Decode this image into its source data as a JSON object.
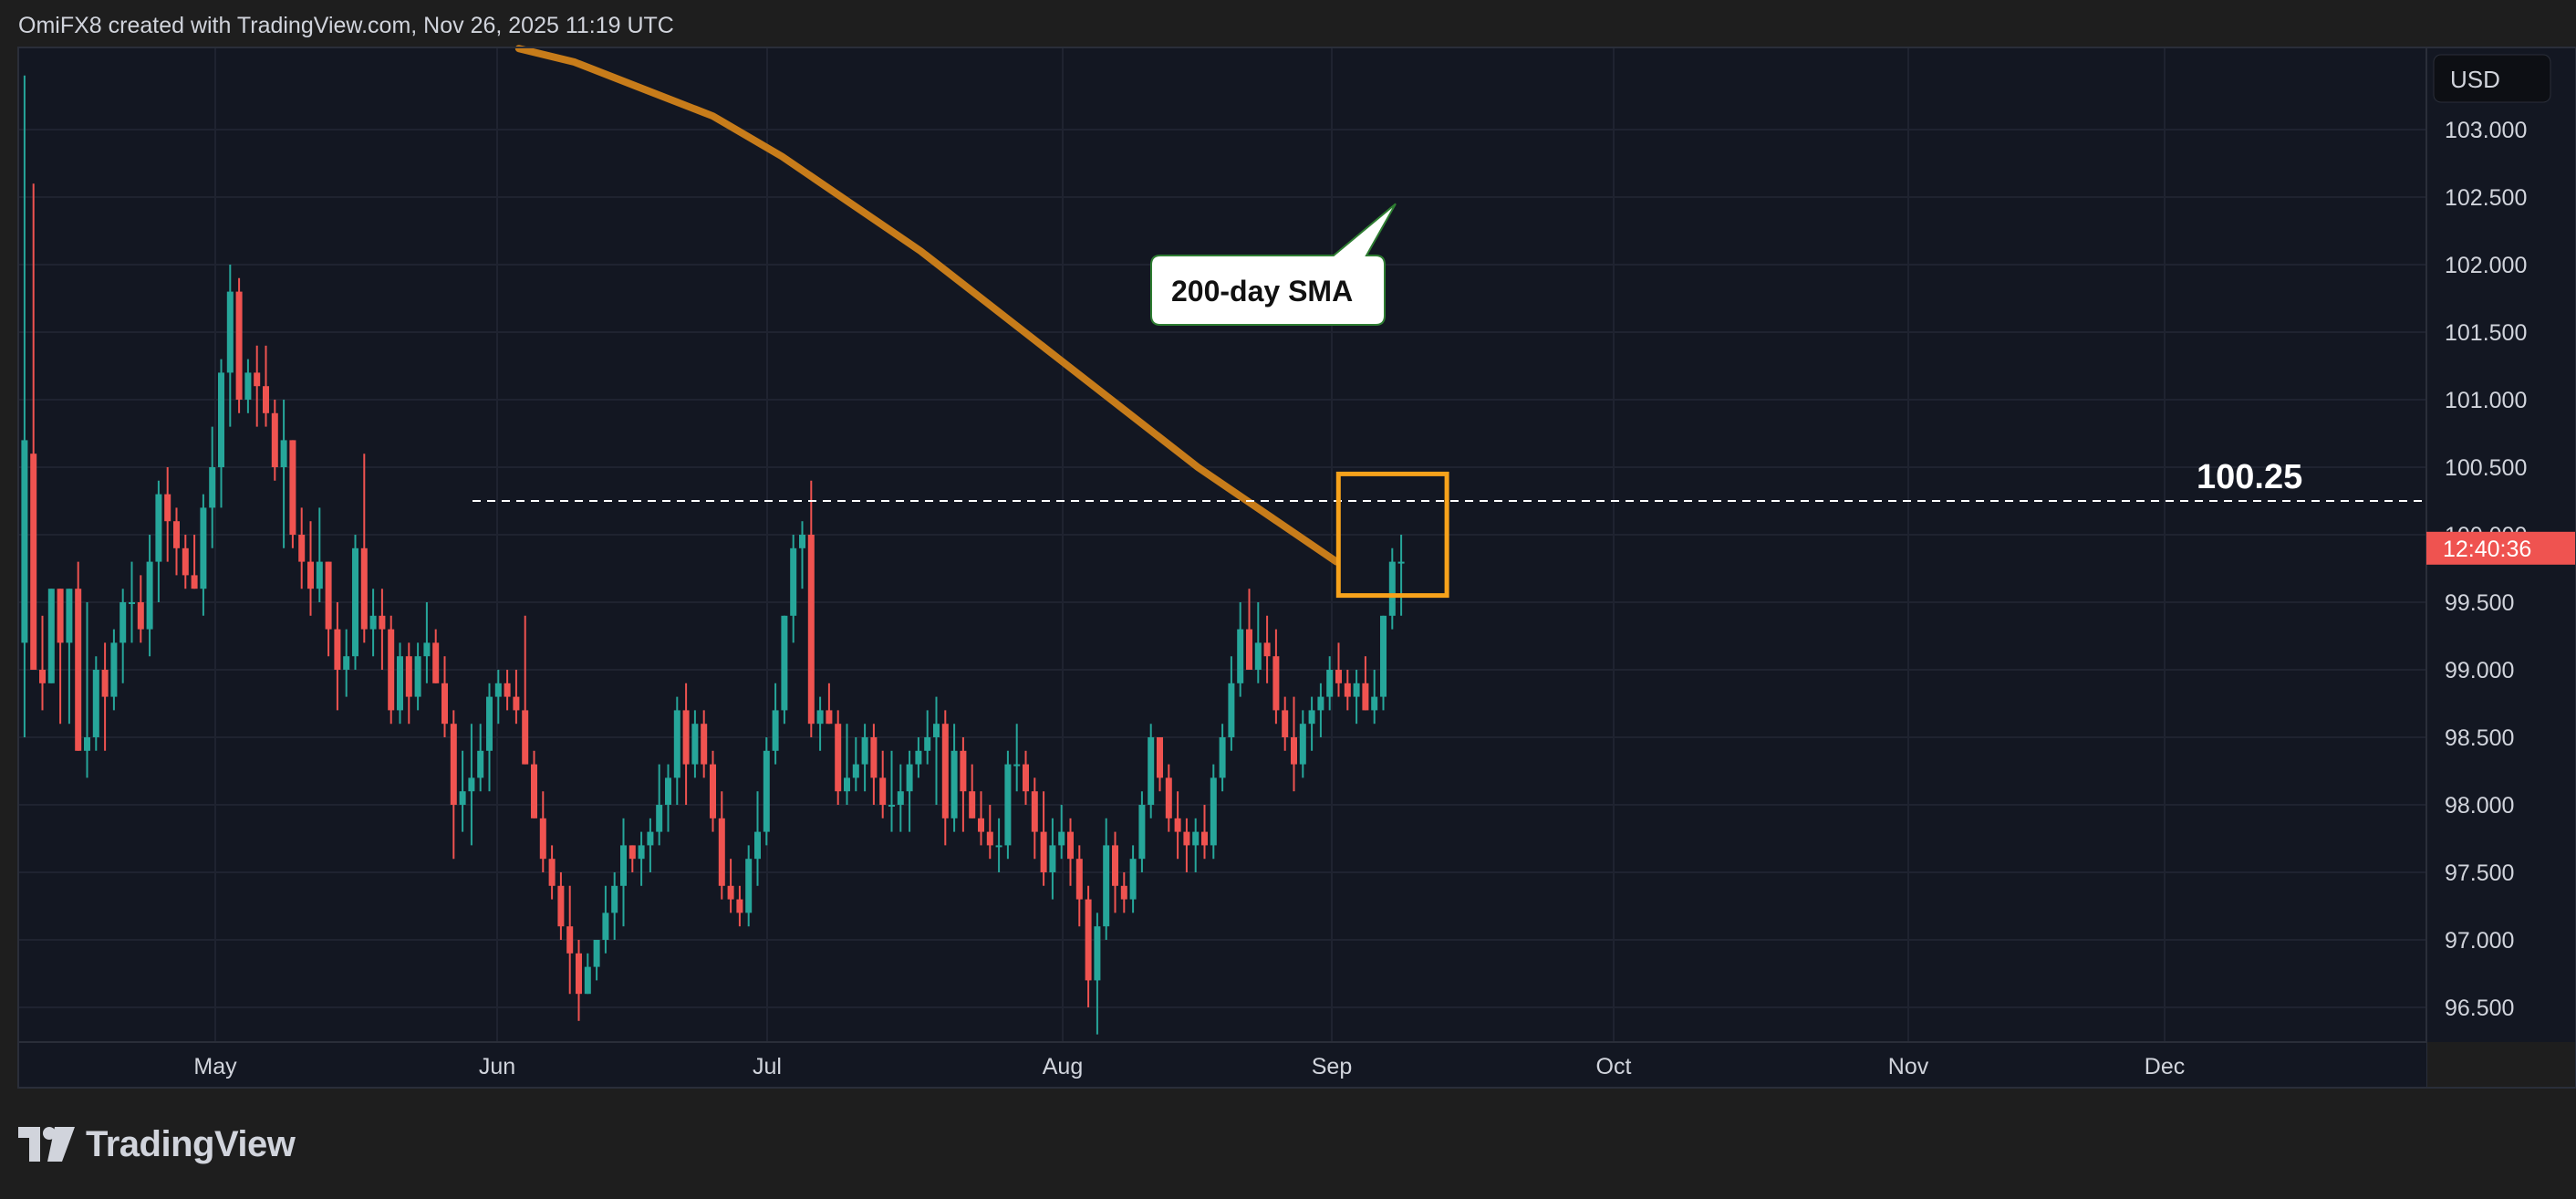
{
  "header": {
    "credit": "OmiFX8 created with TradingView.com, Nov 26, 2025 11:19 UTC"
  },
  "brand": {
    "name": "TradingView"
  },
  "price_scale": {
    "currency": "USD",
    "ticks": [
      "103.000",
      "102.500",
      "102.000",
      "101.500",
      "101.000",
      "100.500",
      "100.000",
      "99.500",
      "99.000",
      "98.500",
      "98.000",
      "97.500",
      "97.000",
      "96.500"
    ],
    "current_price_countdown": "12:40:36"
  },
  "time_scale": {
    "labels": [
      "May",
      "Jun",
      "Jul",
      "Aug",
      "Sep",
      "Oct",
      "Nov",
      "Dec"
    ]
  },
  "annotations": {
    "sma_label": "200-day SMA",
    "level_label": "100.25"
  },
  "colors": {
    "up": "#26a69a",
    "down": "#ef5350",
    "sma": "#c77c1a",
    "highlight": "#f7a21b",
    "background": "#131722"
  },
  "chart_data": {
    "type": "candlestick",
    "symbol_currency": "USD",
    "ylim": [
      96.3,
      103.6
    ],
    "horizontal_level": 100.25,
    "sma_name": "200-day SMA",
    "x": [
      "Apr 11",
      "Apr 14",
      "Apr 15",
      "Apr 16",
      "Apr 17",
      "Apr 18",
      "Apr 21",
      "Apr 22",
      "Apr 23",
      "Apr 24",
      "Apr 25",
      "Apr 28",
      "Apr 29",
      "Apr 30",
      "May 1",
      "May 2",
      "May 5",
      "May 6",
      "May 7",
      "May 8",
      "May 9",
      "May 12",
      "May 13",
      "May 14",
      "May 15",
      "May 16",
      "May 19",
      "May 20",
      "May 21",
      "May 22",
      "May 23",
      "May 26",
      "May 27",
      "May 28",
      "May 29",
      "May 30",
      "Jun 2",
      "Jun 3",
      "Jun 4",
      "Jun 5",
      "Jun 6",
      "Jun 9",
      "Jun 10",
      "Jun 11",
      "Jun 12",
      "Jun 13",
      "Jun 16",
      "Jun 17",
      "Jun 18",
      "Jun 19",
      "Jun 20",
      "Jun 23",
      "Jun 24",
      "Jun 25",
      "Jun 26",
      "Jun 27",
      "Jun 30",
      "Jul 1",
      "Jul 2",
      "Jul 3",
      "Jul 4",
      "Jul 7",
      "Jul 8",
      "Jul 9",
      "Jul 10",
      "Jul 11",
      "Jul 14",
      "Jul 15",
      "Jul 16",
      "Jul 17",
      "Jul 18",
      "Jul 21",
      "Jul 22",
      "Jul 23",
      "Jul 24",
      "Jul 25",
      "Jul 28",
      "Jul 29",
      "Jul 30",
      "Jul 31",
      "Aug 1",
      "Aug 4",
      "Aug 5",
      "Aug 6",
      "Aug 7",
      "Aug 8",
      "Aug 11",
      "Aug 12",
      "Aug 13",
      "Aug 14",
      "Aug 15",
      "Aug 18",
      "Aug 19",
      "Aug 20",
      "Aug 21",
      "Aug 22",
      "Aug 25",
      "Aug 26",
      "Aug 27",
      "Aug 28",
      "Aug 29",
      "Sep 1",
      "Sep 2",
      "Sep 3",
      "Sep 4",
      "Sep 5",
      "Sep 8",
      "Sep 9",
      "Sep 10",
      "Sep 11",
      "Sep 12",
      "Sep 15",
      "Sep 16",
      "Sep 17",
      "Sep 18",
      "Sep 19",
      "Sep 22",
      "Sep 23",
      "Sep 24",
      "Sep 25",
      "Sep 26",
      "Sep 29",
      "Sep 30",
      "Oct 1",
      "Oct 2",
      "Oct 3",
      "Oct 6",
      "Oct 7",
      "Oct 8",
      "Oct 9",
      "Oct 10",
      "Oct 13",
      "Oct 14",
      "Oct 15",
      "Oct 16",
      "Oct 17",
      "Oct 20",
      "Oct 21",
      "Oct 22",
      "Oct 23",
      "Oct 24",
      "Oct 27",
      "Oct 28",
      "Oct 29",
      "Oct 30",
      "Oct 31",
      "Nov 3",
      "Nov 4",
      "Nov 5",
      "Nov 6",
      "Nov 7",
      "Nov 10",
      "Nov 11",
      "Nov 12",
      "Nov 13",
      "Nov 14",
      "Nov 17",
      "Nov 18",
      "Nov 19",
      "Nov 20",
      "Nov 21",
      "Nov 24",
      "Nov 25",
      "Nov 26"
    ],
    "ohlc": [
      [
        99.2,
        103.4,
        98.5,
        100.7
      ],
      [
        100.6,
        102.6,
        99.0,
        99.0
      ],
      [
        99.0,
        99.4,
        98.7,
        98.9
      ],
      [
        98.9,
        99.6,
        98.9,
        99.6
      ],
      [
        99.6,
        99.6,
        98.6,
        99.2
      ],
      [
        99.2,
        99.6,
        98.6,
        99.6
      ],
      [
        99.6,
        99.8,
        98.4,
        98.4
      ],
      [
        98.4,
        99.5,
        98.2,
        98.5
      ],
      [
        98.5,
        99.1,
        98.4,
        99.0
      ],
      [
        99.0,
        99.2,
        98.4,
        98.8
      ],
      [
        98.8,
        99.3,
        98.7,
        99.2
      ],
      [
        99.2,
        99.6,
        98.9,
        99.5
      ],
      [
        99.5,
        99.8,
        99.2,
        99.5
      ],
      [
        99.5,
        99.7,
        99.2,
        99.3
      ],
      [
        99.3,
        100.0,
        99.1,
        99.8
      ],
      [
        99.8,
        100.4,
        99.5,
        100.3
      ],
      [
        100.3,
        100.5,
        99.8,
        100.1
      ],
      [
        100.1,
        100.2,
        99.7,
        99.9
      ],
      [
        99.9,
        100.0,
        99.6,
        99.7
      ],
      [
        99.7,
        100.0,
        99.6,
        99.6
      ],
      [
        99.6,
        100.3,
        99.4,
        100.2
      ],
      [
        100.2,
        100.8,
        99.9,
        100.5
      ],
      [
        100.5,
        101.3,
        100.2,
        101.2
      ],
      [
        101.2,
        102.0,
        100.8,
        101.8
      ],
      [
        101.8,
        101.9,
        100.9,
        101.0
      ],
      [
        101.0,
        101.3,
        100.9,
        101.2
      ],
      [
        101.2,
        101.4,
        100.8,
        101.1
      ],
      [
        101.1,
        101.4,
        100.8,
        100.9
      ],
      [
        100.9,
        101.0,
        100.4,
        100.5
      ],
      [
        100.5,
        101.0,
        99.9,
        100.7
      ],
      [
        100.7,
        100.7,
        99.9,
        100.0
      ],
      [
        100.0,
        100.2,
        99.6,
        99.8
      ],
      [
        99.8,
        100.1,
        99.4,
        99.6
      ],
      [
        99.6,
        100.2,
        99.5,
        99.8
      ],
      [
        99.8,
        99.8,
        99.1,
        99.3
      ],
      [
        99.3,
        99.5,
        98.7,
        99.0
      ],
      [
        99.0,
        99.3,
        98.8,
        99.1
      ],
      [
        99.1,
        100.0,
        99.0,
        99.9
      ],
      [
        99.9,
        100.6,
        99.2,
        99.3
      ],
      [
        99.3,
        99.6,
        99.1,
        99.4
      ],
      [
        99.4,
        99.6,
        99.0,
        99.3
      ],
      [
        99.3,
        99.4,
        98.6,
        98.7
      ],
      [
        98.7,
        99.2,
        98.6,
        99.1
      ],
      [
        99.1,
        99.2,
        98.6,
        98.8
      ],
      [
        98.8,
        99.2,
        98.7,
        99.1
      ],
      [
        99.1,
        99.5,
        98.9,
        99.2
      ],
      [
        99.2,
        99.3,
        98.9,
        98.9
      ],
      [
        98.9,
        99.1,
        98.5,
        98.6
      ],
      [
        98.6,
        98.7,
        97.6,
        98.0
      ],
      [
        98.0,
        98.4,
        97.8,
        98.1
      ],
      [
        98.1,
        98.6,
        97.7,
        98.2
      ],
      [
        98.2,
        98.6,
        98.1,
        98.4
      ],
      [
        98.4,
        98.9,
        98.1,
        98.8
      ],
      [
        98.8,
        99.0,
        98.6,
        98.9
      ],
      [
        98.9,
        99.0,
        98.7,
        98.8
      ],
      [
        98.8,
        99.0,
        98.6,
        98.7
      ],
      [
        98.7,
        99.4,
        98.3,
        98.3
      ],
      [
        98.3,
        98.4,
        97.9,
        97.9
      ],
      [
        97.9,
        98.1,
        97.5,
        97.6
      ],
      [
        97.6,
        97.7,
        97.3,
        97.4
      ],
      [
        97.4,
        97.5,
        97.0,
        97.1
      ],
      [
        97.1,
        97.4,
        96.6,
        96.9
      ],
      [
        96.9,
        97.0,
        96.4,
        96.6
      ],
      [
        96.6,
        96.9,
        96.6,
        96.8
      ],
      [
        96.8,
        97.0,
        96.7,
        97.0
      ],
      [
        97.0,
        97.4,
        96.9,
        97.2
      ],
      [
        97.2,
        97.5,
        97.0,
        97.4
      ],
      [
        97.4,
        97.9,
        97.1,
        97.7
      ],
      [
        97.7,
        97.7,
        97.5,
        97.6
      ],
      [
        97.6,
        97.8,
        97.4,
        97.7
      ],
      [
        97.7,
        97.9,
        97.5,
        97.8
      ],
      [
        97.8,
        98.3,
        97.7,
        98.0
      ],
      [
        98.0,
        98.3,
        97.8,
        98.2
      ],
      [
        98.2,
        98.8,
        98.0,
        98.7
      ],
      [
        98.7,
        98.9,
        98.0,
        98.3
      ],
      [
        98.3,
        98.7,
        98.2,
        98.6
      ],
      [
        98.6,
        98.7,
        98.2,
        98.3
      ],
      [
        98.3,
        98.4,
        97.8,
        97.9
      ],
      [
        97.9,
        98.1,
        97.3,
        97.4
      ],
      [
        97.4,
        97.6,
        97.2,
        97.3
      ],
      [
        97.3,
        97.4,
        97.1,
        97.2
      ],
      [
        97.2,
        97.7,
        97.1,
        97.6
      ],
      [
        97.6,
        98.1,
        97.4,
        97.8
      ],
      [
        97.8,
        98.5,
        97.7,
        98.4
      ],
      [
        98.4,
        98.9,
        98.3,
        98.7
      ],
      [
        98.7,
        99.4,
        98.6,
        99.4
      ],
      [
        99.4,
        100.0,
        99.2,
        99.9
      ],
      [
        99.9,
        100.1,
        99.6,
        100.0
      ],
      [
        100.0,
        100.4,
        98.5,
        98.6
      ],
      [
        98.6,
        98.8,
        98.4,
        98.7
      ],
      [
        98.7,
        98.9,
        98.6,
        98.6
      ],
      [
        98.6,
        98.7,
        98.0,
        98.1
      ],
      [
        98.1,
        98.6,
        98.0,
        98.2
      ],
      [
        98.2,
        98.5,
        98.1,
        98.3
      ],
      [
        98.3,
        98.6,
        98.1,
        98.5
      ],
      [
        98.5,
        98.6,
        98.0,
        98.2
      ],
      [
        98.2,
        98.4,
        97.9,
        98.0
      ],
      [
        98.0,
        98.4,
        97.8,
        98.0
      ],
      [
        98.0,
        98.3,
        97.8,
        98.1
      ],
      [
        98.1,
        98.4,
        97.8,
        98.3
      ],
      [
        98.3,
        98.5,
        98.2,
        98.4
      ],
      [
        98.4,
        98.7,
        98.3,
        98.5
      ],
      [
        98.5,
        98.8,
        98.0,
        98.6
      ],
      [
        98.6,
        98.7,
        97.7,
        97.9
      ],
      [
        97.9,
        98.6,
        97.8,
        98.4
      ],
      [
        98.4,
        98.5,
        97.8,
        98.1
      ],
      [
        98.1,
        98.3,
        97.9,
        97.9
      ],
      [
        97.9,
        98.1,
        97.7,
        97.8
      ],
      [
        97.8,
        98.0,
        97.6,
        97.7
      ],
      [
        97.7,
        97.9,
        97.5,
        97.7
      ],
      [
        97.7,
        98.4,
        97.6,
        98.3
      ],
      [
        98.3,
        98.6,
        98.1,
        98.3
      ],
      [
        98.3,
        98.4,
        98.0,
        98.1
      ],
      [
        98.1,
        98.2,
        97.6,
        97.8
      ],
      [
        97.8,
        98.1,
        97.4,
        97.5
      ],
      [
        97.5,
        97.9,
        97.3,
        97.7
      ],
      [
        97.7,
        98.0,
        97.6,
        97.8
      ],
      [
        97.8,
        97.9,
        97.4,
        97.6
      ],
      [
        97.6,
        97.7,
        97.1,
        97.3
      ],
      [
        97.3,
        97.4,
        96.5,
        96.7
      ],
      [
        96.7,
        97.2,
        96.3,
        97.1
      ],
      [
        97.1,
        97.9,
        97.0,
        97.7
      ],
      [
        97.7,
        97.8,
        97.2,
        97.4
      ],
      [
        97.4,
        97.5,
        97.2,
        97.3
      ],
      [
        97.3,
        97.7,
        97.2,
        97.6
      ],
      [
        97.6,
        98.1,
        97.5,
        98.0
      ],
      [
        98.0,
        98.6,
        97.9,
        98.5
      ],
      [
        98.5,
        98.5,
        98.1,
        98.2
      ],
      [
        98.2,
        98.3,
        97.8,
        97.9
      ],
      [
        97.9,
        98.1,
        97.6,
        97.8
      ],
      [
        97.8,
        97.9,
        97.5,
        97.7
      ],
      [
        97.7,
        97.9,
        97.5,
        97.8
      ],
      [
        97.8,
        98.0,
        97.6,
        97.7
      ],
      [
        97.7,
        98.3,
        97.6,
        98.2
      ],
      [
        98.2,
        98.6,
        98.1,
        98.5
      ],
      [
        98.5,
        99.1,
        98.4,
        98.9
      ],
      [
        98.9,
        99.5,
        98.8,
        99.3
      ],
      [
        99.3,
        99.6,
        99.0,
        99.0
      ],
      [
        99.0,
        99.5,
        98.9,
        99.2
      ],
      [
        99.2,
        99.4,
        98.9,
        99.1
      ],
      [
        99.1,
        99.3,
        98.6,
        98.7
      ],
      [
        98.7,
        98.8,
        98.4,
        98.5
      ],
      [
        98.5,
        98.8,
        98.1,
        98.3
      ],
      [
        98.3,
        98.7,
        98.2,
        98.6
      ],
      [
        98.6,
        98.8,
        98.4,
        98.7
      ],
      [
        98.7,
        98.9,
        98.5,
        98.8
      ],
      [
        98.8,
        99.1,
        98.7,
        99.0
      ],
      [
        99.0,
        99.2,
        98.8,
        98.9
      ],
      [
        98.9,
        99.0,
        98.7,
        98.8
      ],
      [
        98.8,
        99.0,
        98.6,
        98.9
      ],
      [
        98.9,
        99.1,
        98.7,
        98.7
      ],
      [
        98.7,
        99.0,
        98.6,
        98.8
      ],
      [
        98.8,
        99.4,
        98.7,
        99.4
      ],
      [
        99.4,
        99.9,
        99.3,
        99.8
      ],
      [
        99.8,
        100.0,
        99.4,
        99.8
      ]
    ],
    "sma": [
      [
        0.36,
        103.6
      ],
      [
        0.4,
        103.5
      ],
      [
        0.45,
        103.3
      ],
      [
        0.5,
        103.1
      ],
      [
        0.55,
        102.8
      ],
      [
        0.6,
        102.45
      ],
      [
        0.65,
        102.1
      ],
      [
        0.7,
        101.7
      ],
      [
        0.75,
        101.3
      ],
      [
        0.8,
        100.9
      ],
      [
        0.85,
        100.5
      ],
      [
        0.9,
        100.15
      ],
      [
        0.95,
        99.8
      ]
    ]
  }
}
